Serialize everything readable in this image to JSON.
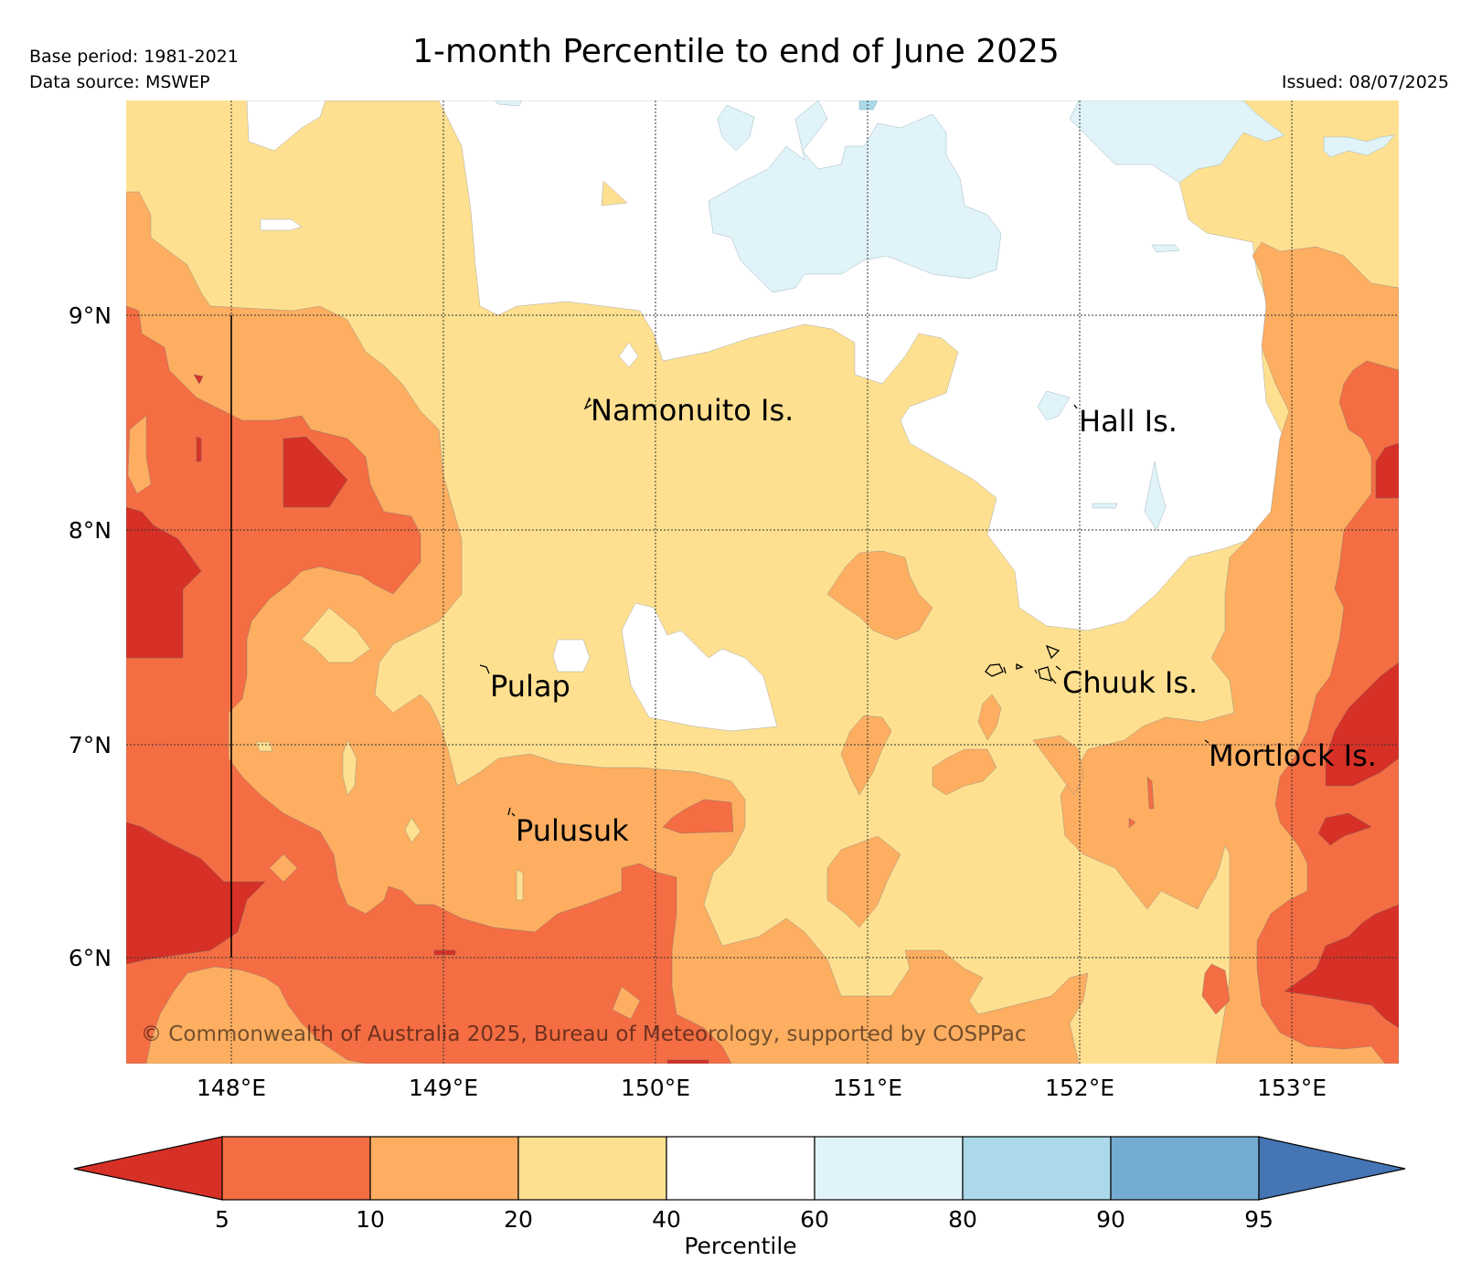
{
  "title": "1-month Percentile to end of June 2025",
  "base_period": "Base period: 1981-2021",
  "data_source": "Data source: MSWEP",
  "issued": "Issued: 08/07/2025",
  "copyright": "© Commonwealth of Australia 2025, Bureau of Meteorology, supported by COSPPac",
  "lon_labels": [
    "148°E",
    "149°E",
    "150°E",
    "151°E",
    "152°E",
    "153°E"
  ],
  "lat_labels": [
    "9°N",
    "8°N",
    "7°N",
    "6°N"
  ],
  "place_labels": {
    "namonuito": "Namonuito Is.",
    "hall": "Hall Is.",
    "pulap": "Pulap",
    "chuuk": "Chuuk Is.",
    "mortlock": "Mortlock Is.",
    "pulusuk": "Pulusuk"
  },
  "colorbar": {
    "label": "Percentile",
    "ticks": [
      "5",
      "10",
      "20",
      "40",
      "60",
      "80",
      "90",
      "95"
    ],
    "colors": {
      "lt5": "#d73027",
      "c5_10": "#f46d43",
      "c10_20": "#fdae61",
      "c20_40": "#fee090",
      "c40_60": "#ffffff",
      "c60_80": "#e0f3f8",
      "c80_90": "#abd9e9",
      "c90_95": "#74add1",
      "gt95": "#4575b4"
    }
  }
}
